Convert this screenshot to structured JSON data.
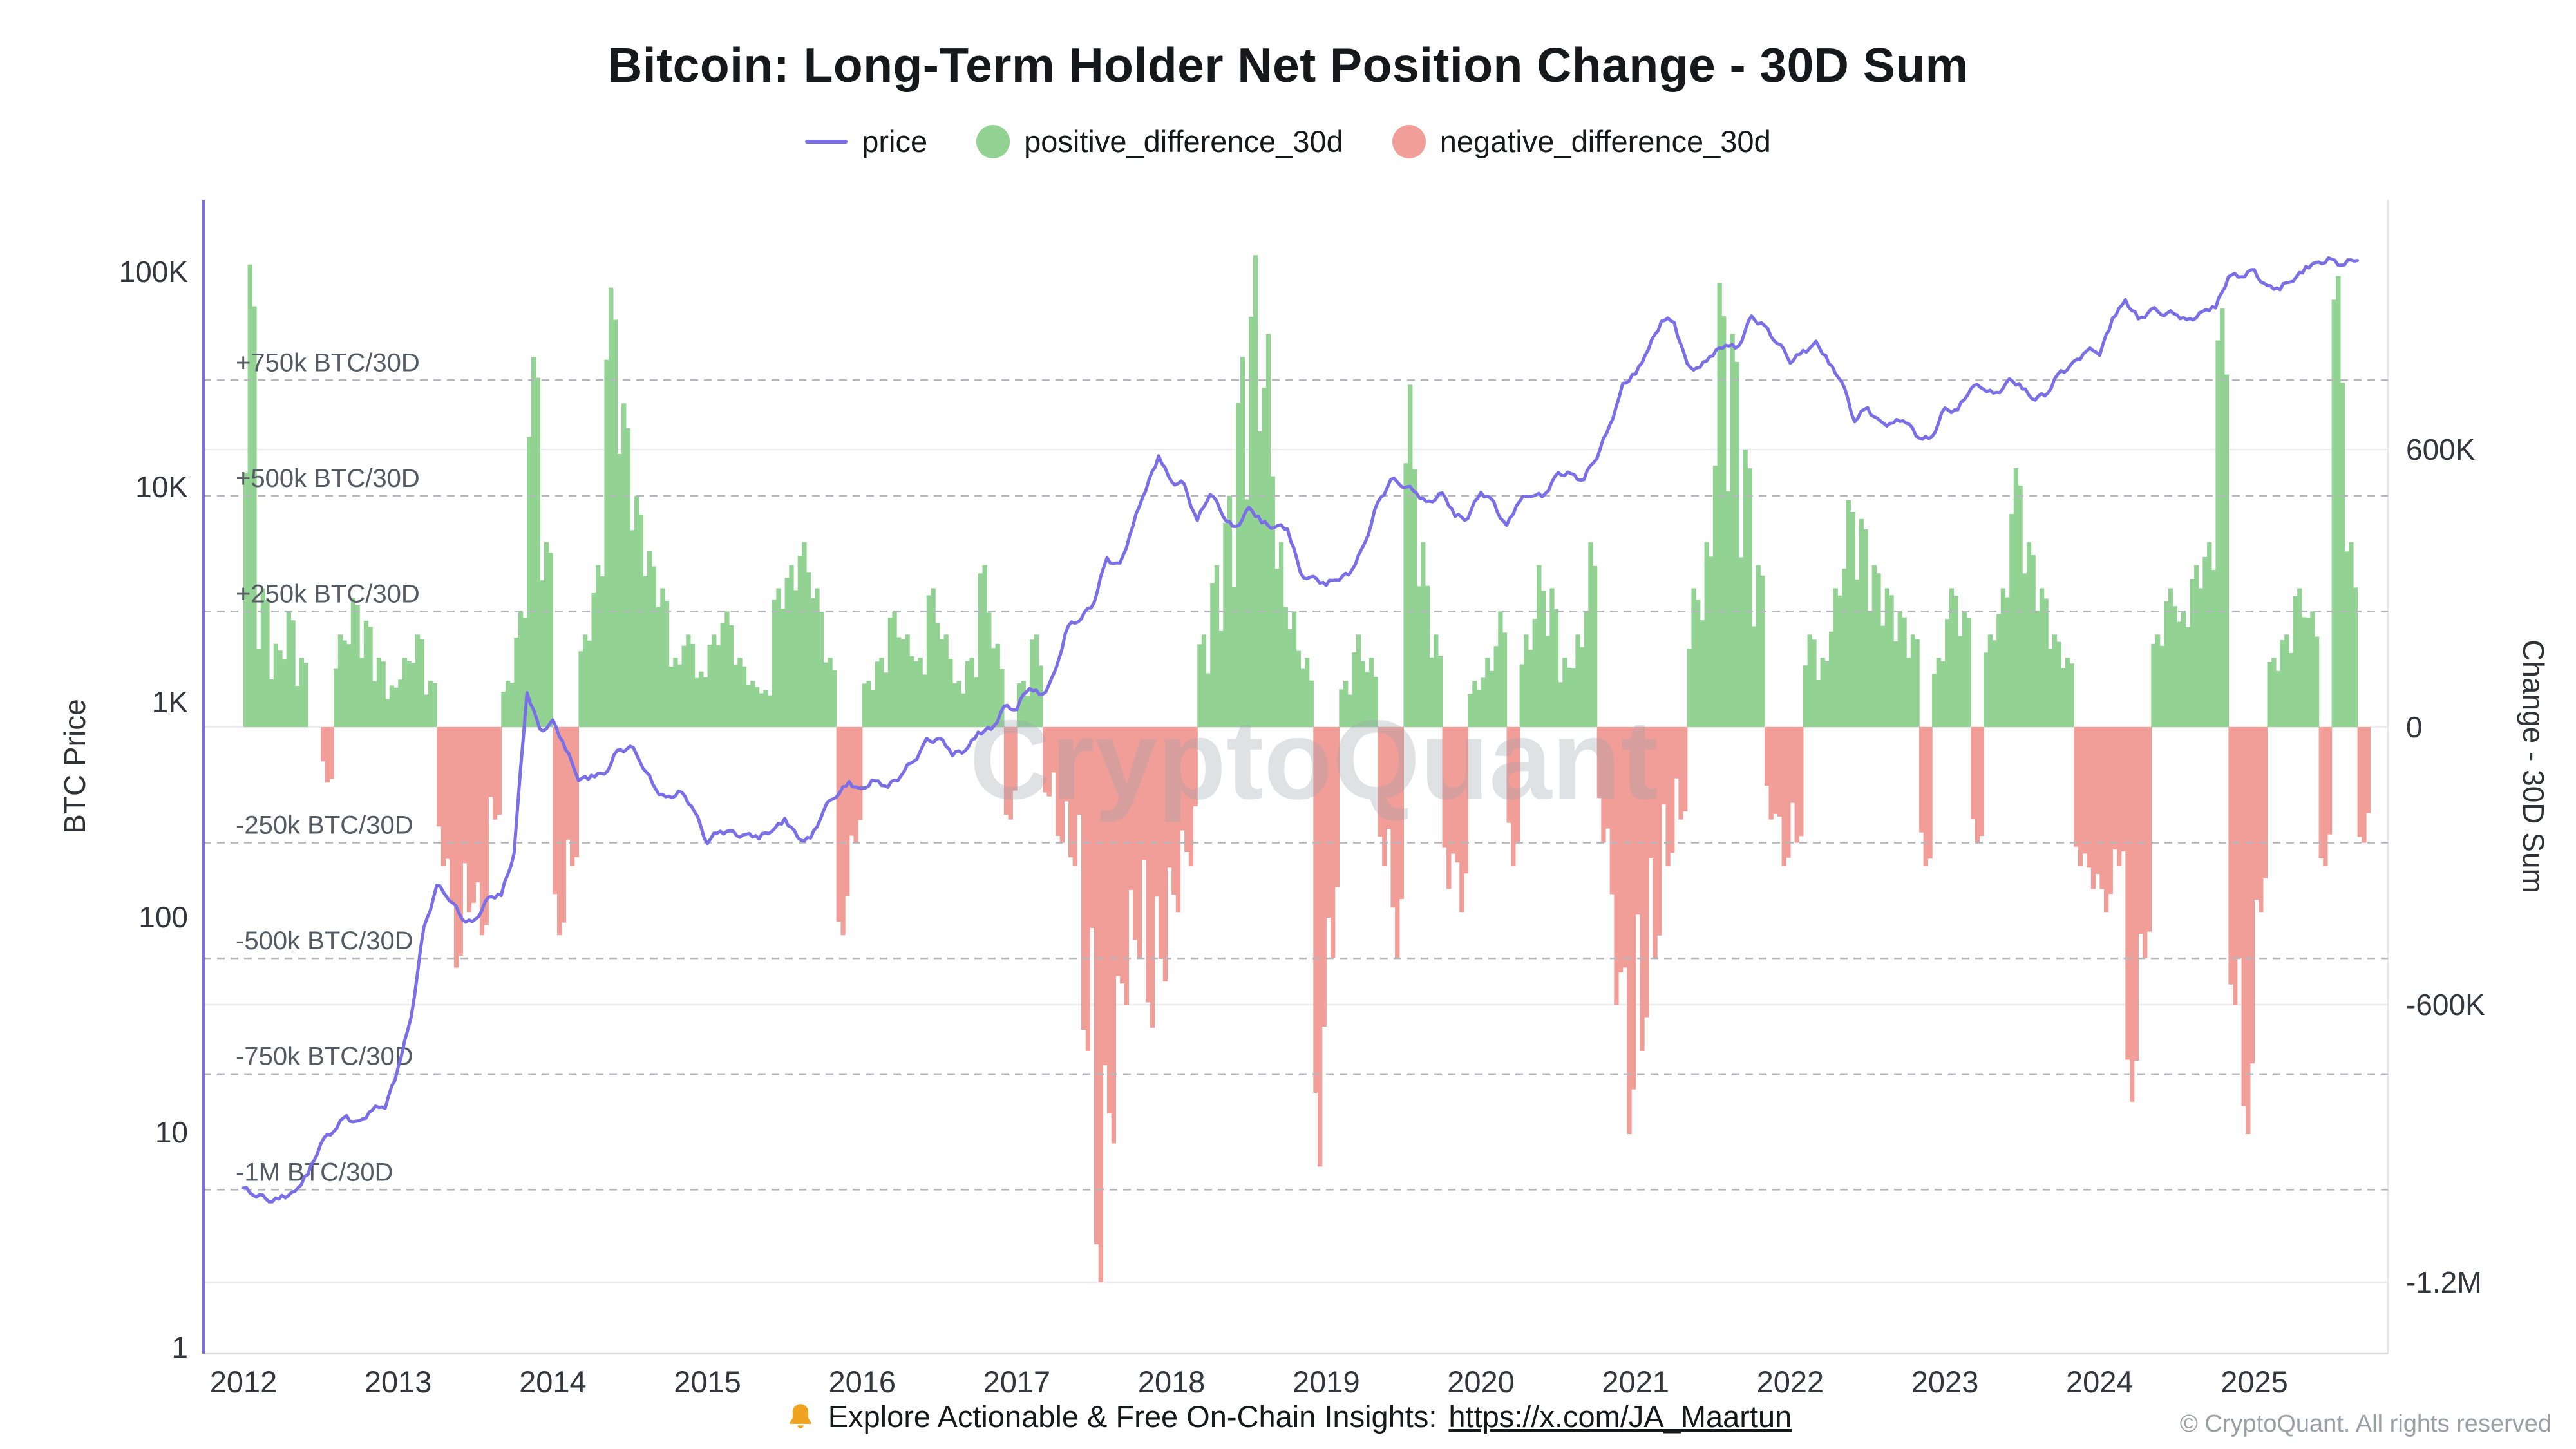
{
  "title": "Bitcoin: Long-Term Holder Net Position Change - 30D Sum",
  "watermark": "CryptoQuant",
  "legend": [
    {
      "label": "price",
      "type": "line",
      "color": "#7a6fe6"
    },
    {
      "label": "positive_difference_30d",
      "type": "dot",
      "color": "#92d394"
    },
    {
      "label": "negative_difference_30d",
      "type": "dot",
      "color": "#f29e98"
    }
  ],
  "left_axis": {
    "title": "BTC Price",
    "scale": "log",
    "ticks": [
      {
        "value": 100000,
        "label": "100K"
      },
      {
        "value": 10000,
        "label": "10K"
      },
      {
        "value": 1000,
        "label": "1K"
      },
      {
        "value": 100,
        "label": "100"
      },
      {
        "value": 10,
        "label": "10"
      },
      {
        "value": 1,
        "label": "1"
      }
    ]
  },
  "right_axis": {
    "title": "Change - 30D Sum",
    "ticks": [
      {
        "value": 600,
        "label": "600K"
      },
      {
        "value": 0,
        "label": "0"
      },
      {
        "value": -600,
        "label": "-600K"
      },
      {
        "value": -1200,
        "label": "-1.2M"
      }
    ]
  },
  "threshold_lines": [
    {
      "value": 750,
      "label": "+750k BTC/30D"
    },
    {
      "value": 500,
      "label": "+500k BTC/30D"
    },
    {
      "value": 250,
      "label": "+250k BTC/30D"
    },
    {
      "value": -250,
      "label": "-250k BTC/30D"
    },
    {
      "value": -500,
      "label": "-500k BTC/30D"
    },
    {
      "value": -750,
      "label": "-750k BTC/30D"
    },
    {
      "value": -1000,
      "label": "-1M BTC/30D"
    }
  ],
  "x_axis": {
    "years": [
      2012,
      2013,
      2014,
      2015,
      2016,
      2017,
      2018,
      2019,
      2020,
      2021,
      2022,
      2023,
      2024,
      2025
    ]
  },
  "footer": {
    "text": "Explore Actionable & Free On-Chain Insights:",
    "link": "https://x.com/JA_Maartun",
    "copyright": "© CryptoQuant. All rights reserved"
  },
  "chart_data": {
    "type": "mixed",
    "x_unit": "monthly, starting 2012-01",
    "x_range_years": [
      2011.74,
      2025.86
    ],
    "left_axis_range": [
      1,
      215000
    ],
    "right_axis_range_thousand_btc": [
      -1340,
      1140
    ],
    "grid": "horizontal solid at right-axis ticks, dashed labeled thresholds",
    "legend_position": "top-center",
    "series": [
      {
        "name": "price",
        "type": "line",
        "axis": "left-log",
        "unit": "USD",
        "color": "#7a6fe6",
        "values": [
          5.5,
          5,
          4.9,
          5,
          5.1,
          6.5,
          9,
          10,
          12,
          11,
          12.5,
          13.5,
          20,
          33,
          90,
          140,
          120,
          100,
          95,
          120,
          130,
          200,
          1100,
          750,
          800,
          600,
          450,
          450,
          450,
          600,
          620,
          500,
          400,
          350,
          375,
          320,
          220,
          250,
          250,
          235,
          235,
          260,
          280,
          230,
          235,
          310,
          370,
          430,
          380,
          430,
          415,
          450,
          530,
          670,
          660,
          580,
          610,
          700,
          740,
          960,
          920,
          1190,
          1080,
          1350,
          2300,
          2500,
          2870,
          4700,
          4340,
          6450,
          10000,
          14100,
          10200,
          10300,
          7000,
          9250,
          7500,
          6400,
          7750,
          7000,
          6600,
          6300,
          4000,
          3740,
          3460,
          3850,
          4100,
          5320,
          8550,
          10800,
          10000,
          9600,
          8300,
          9150,
          7550,
          7200,
          9350,
          8550,
          6440,
          8620,
          9450,
          9140,
          11350,
          11650,
          10780,
          13800,
          19700,
          29000,
          33100,
          45200,
          58800,
          57700,
          37300,
          35000,
          41600,
          47100,
          43800,
          61300,
          57000,
          46200,
          38500,
          43200,
          45500,
          37700,
          31800,
          19900,
          23300,
          20000,
          19400,
          20500,
          17200,
          16500,
          23100,
          23100,
          28500,
          29200,
          27200,
          30500,
          29200,
          26000,
          27000,
          34700,
          37700,
          42300,
          42600,
          61200,
          71300,
          60600,
          67500,
          62700,
          64600,
          59100,
          63300,
          70200,
          96400,
          93400,
          102400,
          84400,
          82500,
          94200,
          104600,
          107100,
          115800,
          108200,
          114000
        ]
      },
      {
        "name": "net_position_change_30d",
        "type": "bar",
        "axis": "right",
        "unit": "thousand BTC / 30D",
        "positive_color": "#92d394",
        "negative_color": "#f29e98",
        "values": [
          1000,
          300,
          180,
          250,
          150,
          0,
          -120,
          200,
          280,
          230,
          150,
          90,
          150,
          200,
          100,
          -300,
          -520,
          -400,
          -450,
          -200,
          100,
          250,
          800,
          400,
          -450,
          -300,
          200,
          350,
          950,
          700,
          500,
          380,
          300,
          150,
          200,
          120,
          200,
          250,
          150,
          100,
          80,
          300,
          350,
          400,
          300,
          150,
          -450,
          -250,
          100,
          150,
          250,
          200,
          150,
          300,
          200,
          100,
          150,
          350,
          180,
          -200,
          100,
          200,
          -150,
          -250,
          -300,
          -700,
          -1200,
          -900,
          -600,
          -500,
          -650,
          -550,
          -400,
          -300,
          200,
          350,
          500,
          800,
          1020,
          850,
          400,
          250,
          150,
          -950,
          -500,
          100,
          200,
          150,
          -300,
          -500,
          740,
          400,
          200,
          -350,
          -400,
          100,
          150,
          250,
          -300,
          200,
          350,
          300,
          150,
          200,
          400,
          -250,
          -600,
          -880,
          -700,
          -500,
          -300,
          -200,
          300,
          400,
          960,
          850,
          600,
          350,
          -200,
          -300,
          -250,
          200,
          150,
          300,
          490,
          450,
          350,
          300,
          250,
          200,
          -300,
          150,
          300,
          250,
          -250,
          200,
          300,
          560,
          400,
          300,
          200,
          150,
          -300,
          -350,
          -400,
          -300,
          -810,
          -500,
          200,
          300,
          250,
          350,
          400,
          905,
          -600,
          -880,
          -400,
          150,
          200,
          300,
          250,
          -300,
          975,
          400,
          -250
        ]
      }
    ]
  }
}
